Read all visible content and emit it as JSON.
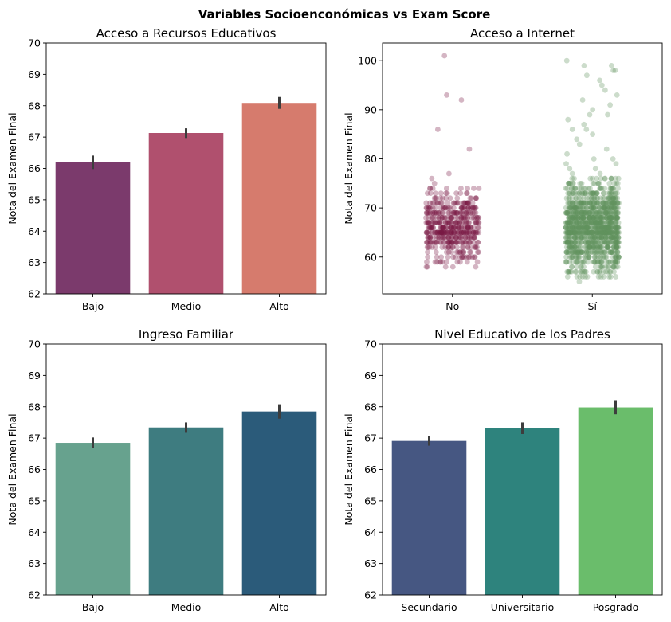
{
  "suptitle": "Variables Socioenconómicas vs Exam Score",
  "chart_data": [
    {
      "id": "recursos",
      "type": "bar",
      "title": "Acceso a Recursos Educativos",
      "xlabel": "",
      "ylabel": "Nota del Examen Final",
      "categories": [
        "Bajo",
        "Medio",
        "Alto"
      ],
      "values": [
        66.2,
        67.13,
        68.09
      ],
      "error_low": [
        65.98,
        66.97,
        67.9
      ],
      "error_high": [
        66.41,
        67.28,
        68.28
      ],
      "colors": [
        "#7b3a6c",
        "#b0506e",
        "#d67b6d"
      ],
      "ylim": [
        62,
        70
      ],
      "yticks": [
        62,
        63,
        64,
        65,
        66,
        67,
        68,
        69,
        70
      ]
    },
    {
      "id": "internet",
      "type": "scatter",
      "title": "Acceso a Internet",
      "xlabel": "",
      "ylabel": "Nota del Examen Final",
      "categories": [
        "No",
        "Sí"
      ],
      "colors": [
        "#7a1a45",
        "#5f935e"
      ],
      "ylim": [
        52.5,
        103.6
      ],
      "yticks": [
        60,
        70,
        80,
        90,
        100
      ],
      "series": [
        {
          "name": "No",
          "core_range": [
            58,
            74
          ],
          "core_count": 500,
          "outliers": [
            101,
            93,
            92,
            86,
            82,
            77,
            76,
            75,
            74,
            74
          ]
        },
        {
          "name": "Sí",
          "core_range": [
            56,
            76
          ],
          "core_count": 1200,
          "outliers": [
            100,
            99,
            99,
            98,
            98,
            97,
            96,
            95,
            94,
            93,
            92,
            91,
            90,
            89,
            89,
            88,
            87,
            86,
            86,
            85,
            84,
            83,
            82,
            81,
            80,
            80,
            79,
            79,
            78,
            78,
            77,
            77,
            56,
            55
          ]
        }
      ]
    },
    {
      "id": "ingreso",
      "type": "bar",
      "title": "Ingreso Familiar",
      "xlabel": "",
      "ylabel": "Nota del Examen Final",
      "categories": [
        "Bajo",
        "Medio",
        "Alto"
      ],
      "values": [
        66.85,
        67.34,
        67.85
      ],
      "error_low": [
        66.68,
        67.17,
        67.62
      ],
      "error_high": [
        67.02,
        67.5,
        68.08
      ],
      "colors": [
        "#67a28e",
        "#3e7c80",
        "#2b5b7a"
      ],
      "ylim": [
        62,
        70
      ],
      "yticks": [
        62,
        63,
        64,
        65,
        66,
        67,
        68,
        69,
        70
      ]
    },
    {
      "id": "padres",
      "type": "bar",
      "title": "Nivel Educativo de los Padres",
      "xlabel": "",
      "ylabel": "Nota del Examen Final",
      "categories": [
        "Secundario",
        "Universitario",
        "Posgrado"
      ],
      "values": [
        66.91,
        67.32,
        67.98
      ],
      "error_low": [
        66.76,
        67.13,
        67.76
      ],
      "error_high": [
        67.06,
        67.5,
        68.21
      ],
      "colors": [
        "#465782",
        "#2e837d",
        "#6abd6b"
      ],
      "ylim": [
        62,
        70
      ],
      "yticks": [
        62,
        63,
        64,
        65,
        66,
        67,
        68,
        69,
        70
      ]
    }
  ]
}
